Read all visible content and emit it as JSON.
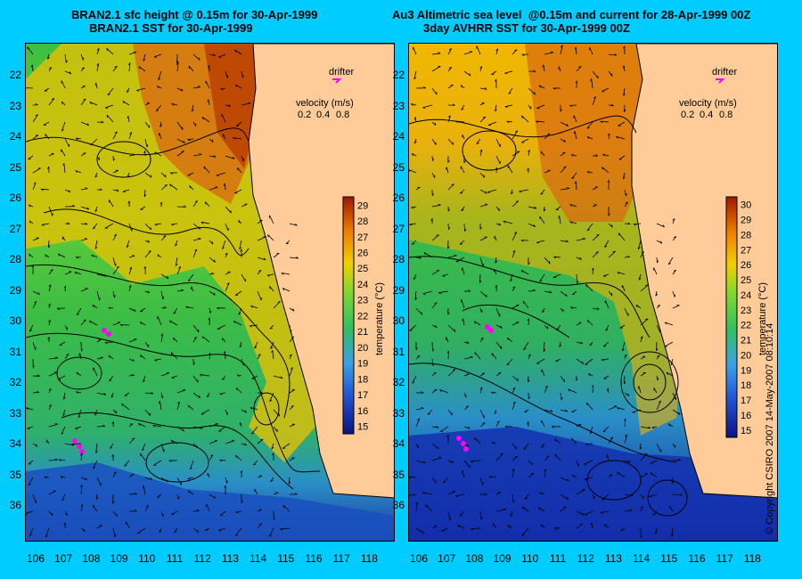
{
  "titles": {
    "left_line1": "BRAN2.1 sfc height @ 0.15m for 30-Apr-1999",
    "left_line2": "BRAN2.1 SST for 30-Apr-1999",
    "right_line1": "Au3 Altimetric sea level  @0.15m and current for 28-Apr-1999 00Z",
    "right_line2": "3day AVHRR SST for 30-Apr-1999 00Z"
  },
  "overlay": {
    "drifter_label": "drifter",
    "velocity_label": "velocity (m/s)",
    "velocity_scale": [
      "0.2",
      "0.4",
      "0.8"
    ]
  },
  "colorbar_left": {
    "ticks": [
      "29",
      "28",
      "27",
      "26",
      "25",
      "24",
      "23",
      "22",
      "21",
      "20",
      "19",
      "18",
      "17",
      "16",
      "15"
    ],
    "label": "temperature (°C)"
  },
  "colorbar_right": {
    "ticks": [
      "30",
      "29",
      "28",
      "27",
      "26",
      "25",
      "24",
      "23",
      "22",
      "21",
      "20",
      "19",
      "18",
      "17",
      "16",
      "15"
    ],
    "label": "temperature (°C)"
  },
  "lat_labels": [
    "22",
    "23",
    "24",
    "25",
    "26",
    "27",
    "28",
    "29",
    "30",
    "31",
    "32",
    "33",
    "34",
    "35",
    "36"
  ],
  "lon_labels": [
    "106",
    "107",
    "108",
    "109",
    "110",
    "111",
    "112",
    "113",
    "114",
    "115",
    "116",
    "117",
    "118"
  ],
  "copyright": "© Copyright CSIRO 2007     14-May-2007 08:10:14",
  "colors": {
    "background": "#00ccff",
    "land": "#ffcc99",
    "drifter": "#ff00ff",
    "sst_cold": "#1a3aa0",
    "sst_cool": "#3fbf3f",
    "sst_warm": "#f0c000",
    "sst_hot": "#c24a00"
  }
}
